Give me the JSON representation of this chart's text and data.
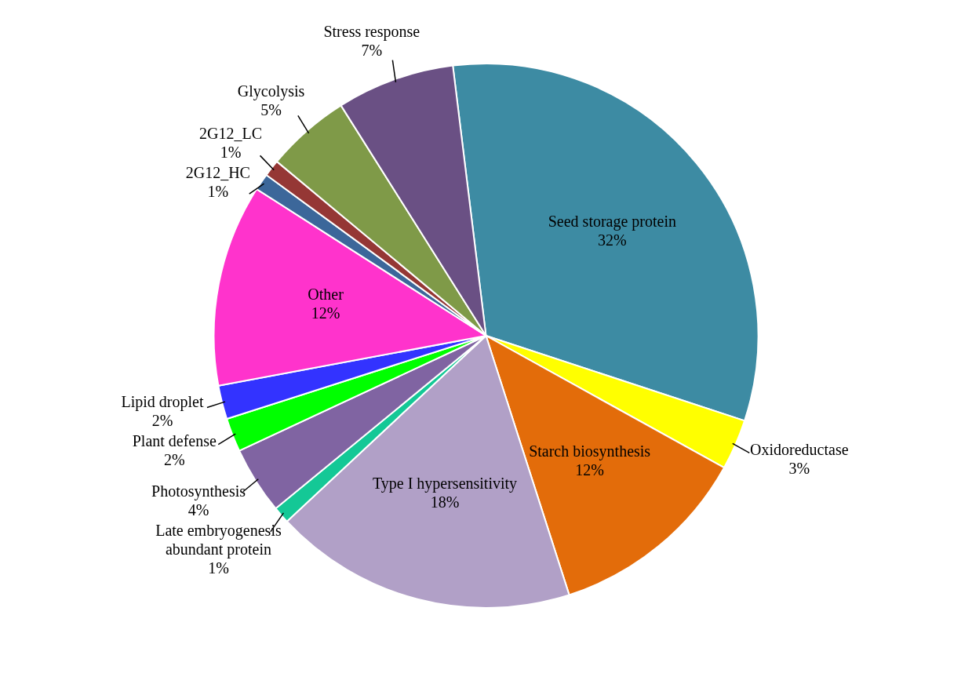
{
  "chart_data": {
    "type": "pie",
    "categories": [
      "Seed storage protein",
      "Oxidoreductase",
      "Starch biosynthesis",
      "Type I hypersensitivity",
      "Late embryogenesis abundant protein",
      "Photosynthesis",
      "Plant defense",
      "Lipid droplet",
      "Other",
      "2G12_HC",
      "2G12_LC",
      "Glycolysis",
      "Stress response"
    ],
    "values": [
      32,
      3,
      12,
      18,
      1,
      4,
      2,
      2,
      12,
      1,
      1,
      5,
      7
    ],
    "colors": [
      "#3d8ba3",
      "#ffff00",
      "#e36c0a",
      "#b1a0c7",
      "#14c896",
      "#8064a2",
      "#00ff00",
      "#3333ff",
      "#ff33cc",
      "#3c679a",
      "#953735",
      "#7f9a48",
      "#6a5084"
    ],
    "value_labels": [
      "32%",
      "3%",
      "12%",
      "18%",
      "1%",
      "4%",
      "2%",
      "2%",
      "12%",
      "1%",
      "1%",
      "5%",
      "7%"
    ],
    "legend": false
  }
}
